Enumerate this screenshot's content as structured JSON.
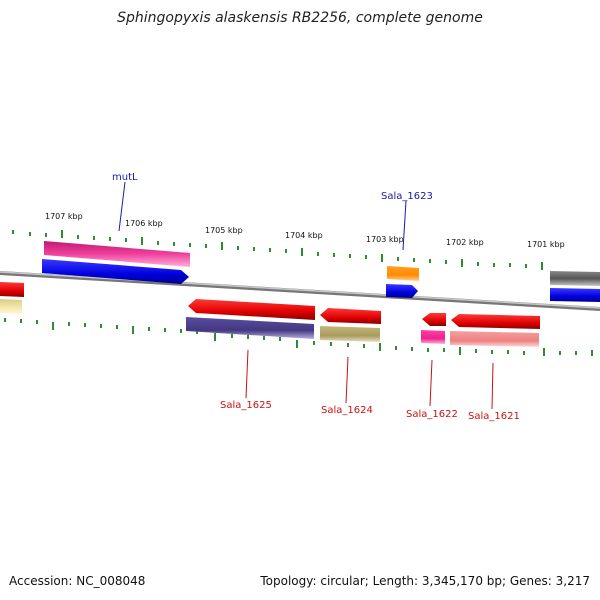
{
  "title": "Sphingopyxis alaskensis RB2256, complete genome",
  "footer": {
    "accession": "Accession: NC_008048",
    "summary": "Topology: circular; Length: 3,345,170 bp; Genes: 3,217"
  },
  "scale_labels": [
    "1707 kbp",
    "1706 kbp",
    "1705 kbp",
    "1704 kbp",
    "1703 kbp",
    "1702 kbp",
    "1701 kbp"
  ],
  "gene_labels": {
    "mutL": "mutL",
    "sala_1623": "Sala_1623",
    "sala_1625": "Sala_1625",
    "sala_1624": "Sala_1624",
    "sala_1622": "Sala_1622",
    "sala_1621": "Sala_1621"
  },
  "colors": {
    "backbone": "#8a8a8a",
    "tick": "#2e8b2e",
    "forward_label": "#1a1aa8",
    "reverse_label": "#cc1111",
    "blue": "#0a0ae6",
    "red": "#e60000",
    "magenta": "#e8339a",
    "orange": "#ff8c00",
    "gray": "#666666",
    "navy": "#4a3f8a",
    "olive": "#b5a86a",
    "pink": "#ff3399",
    "salmon": "#f08a8a",
    "khaki": "#f0e29a"
  }
}
